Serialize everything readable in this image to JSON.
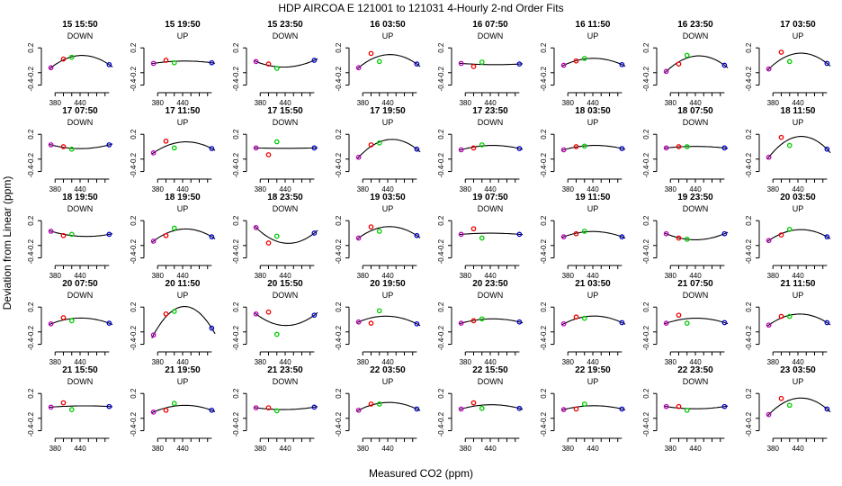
{
  "chart_data": {
    "type": "scatter",
    "title": "HDP    AIRCOA E    121001 to 121031    4-Hourly 2-nd Order Fits",
    "xlabel": "Measured CO2 (ppm)",
    "ylabel": "Deviation from Linear (ppm)",
    "xlim": [
      360,
      520
    ],
    "ylim": [
      -0.45,
      0.45
    ],
    "x_ticks": [
      "380",
      "440"
    ],
    "y_ticks": [
      "-0.4",
      "-0.2",
      "0.2"
    ],
    "grid": false,
    "layout": "5 rows x 8 columns of small multiples",
    "point_x": [
      370,
      400,
      420,
      510
    ],
    "point_colors": [
      "#bb00bb",
      "#ee0000",
      "#00cc00",
      "#0000cc"
    ],
    "panels": [
      {
        "title": "15 15:50",
        "dir": "DOWN",
        "points": [
          -0.12,
          0.02,
          0.05,
          -0.07
        ]
      },
      {
        "title": "15 19:50",
        "dir": "UP",
        "points": [
          -0.05,
          0.0,
          -0.04,
          -0.04
        ]
      },
      {
        "title": "15 23:50",
        "dir": "DOWN",
        "points": [
          -0.02,
          -0.06,
          -0.13,
          0.0
        ]
      },
      {
        "title": "16 03:50",
        "dir": "UP",
        "points": [
          -0.12,
          0.11,
          -0.02,
          -0.06
        ]
      },
      {
        "title": "16 07:50",
        "dir": "DOWN",
        "points": [
          -0.05,
          -0.1,
          -0.03,
          -0.06
        ]
      },
      {
        "title": "16 11:50",
        "dir": "UP",
        "points": [
          -0.08,
          -0.01,
          0.03,
          -0.07
        ]
      },
      {
        "title": "16 23:50",
        "dir": "DOWN",
        "points": [
          -0.18,
          -0.06,
          0.08,
          -0.08
        ]
      },
      {
        "title": "17 03:50",
        "dir": "UP",
        "points": [
          -0.14,
          0.13,
          -0.02,
          -0.05
        ]
      },
      {
        "title": "17 07:50",
        "dir": "DOWN",
        "points": [
          0.03,
          0.0,
          -0.04,
          0.03
        ]
      },
      {
        "title": "17 11:50",
        "dir": "UP",
        "points": [
          -0.1,
          0.09,
          -0.02,
          -0.03
        ]
      },
      {
        "title": "17 15:50",
        "dir": "DOWN",
        "points": [
          -0.02,
          -0.13,
          0.08,
          -0.02
        ]
      },
      {
        "title": "17 19:50",
        "dir": "UP",
        "points": [
          -0.17,
          0.03,
          0.06,
          -0.04
        ]
      },
      {
        "title": "17 23:50",
        "dir": "DOWN",
        "points": [
          -0.05,
          -0.02,
          0.03,
          -0.03
        ]
      },
      {
        "title": "18 03:50",
        "dir": "UP",
        "points": [
          -0.05,
          0.0,
          0.01,
          -0.03
        ]
      },
      {
        "title": "18 07:50",
        "dir": "DOWN",
        "points": [
          -0.02,
          0.0,
          0.0,
          -0.02
        ]
      },
      {
        "title": "18 11:50",
        "dir": "UP",
        "points": [
          -0.17,
          0.15,
          0.02,
          -0.04
        ]
      },
      {
        "title": "18 19:50",
        "dir": "DOWN",
        "points": [
          0.03,
          -0.04,
          -0.02,
          -0.02
        ]
      },
      {
        "title": "18 19:50",
        "dir": "UP",
        "points": [
          -0.13,
          -0.04,
          0.08,
          -0.06
        ]
      },
      {
        "title": "18 23:50",
        "dir": "DOWN",
        "points": [
          0.09,
          -0.16,
          -0.05,
          0.0
        ]
      },
      {
        "title": "19 03:50",
        "dir": "UP",
        "points": [
          -0.08,
          0.1,
          0.03,
          -0.04
        ]
      },
      {
        "title": "19 07:50",
        "dir": "DOWN",
        "points": [
          -0.02,
          0.07,
          -0.08,
          -0.02
        ]
      },
      {
        "title": "19 11:50",
        "dir": "UP",
        "points": [
          -0.06,
          -0.01,
          0.03,
          -0.06
        ]
      },
      {
        "title": "19 23:50",
        "dir": "DOWN",
        "points": [
          -0.01,
          -0.08,
          -0.1,
          -0.01
        ]
      },
      {
        "title": "20 03:50",
        "dir": "UP",
        "points": [
          -0.12,
          -0.03,
          0.06,
          -0.06
        ]
      },
      {
        "title": "20 07:50",
        "dir": "DOWN",
        "points": [
          -0.07,
          0.03,
          -0.02,
          -0.06
        ]
      },
      {
        "title": "20 11:50",
        "dir": "UP",
        "points": [
          -0.25,
          0.09,
          0.13,
          -0.14
        ]
      },
      {
        "title": "20 15:50",
        "dir": "DOWN",
        "points": [
          0.09,
          0.12,
          -0.24,
          0.07
        ]
      },
      {
        "title": "20 19:50",
        "dir": "UP",
        "points": [
          -0.04,
          -0.06,
          0.14,
          -0.07
        ]
      },
      {
        "title": "20 23:50",
        "dir": "DOWN",
        "points": [
          -0.06,
          -0.02,
          0.01,
          -0.04
        ]
      },
      {
        "title": "21 03:50",
        "dir": "UP",
        "points": [
          -0.07,
          0.04,
          0.02,
          -0.05
        ]
      },
      {
        "title": "21 07:50",
        "dir": "DOWN",
        "points": [
          -0.06,
          0.07,
          -0.06,
          -0.05
        ]
      },
      {
        "title": "21 11:50",
        "dir": "UP",
        "points": [
          -0.09,
          0.05,
          0.05,
          -0.05
        ]
      },
      {
        "title": "21 15:50",
        "dir": "DOWN",
        "points": [
          -0.02,
          0.05,
          -0.06,
          -0.01
        ]
      },
      {
        "title": "21 19:50",
        "dir": "UP",
        "points": [
          -0.1,
          -0.07,
          0.04,
          -0.07
        ]
      },
      {
        "title": "21 23:50",
        "dir": "DOWN",
        "points": [
          -0.03,
          -0.03,
          -0.08,
          -0.02
        ]
      },
      {
        "title": "22 03:50",
        "dir": "UP",
        "points": [
          -0.07,
          0.03,
          0.03,
          -0.05
        ]
      },
      {
        "title": "22 15:50",
        "dir": "DOWN",
        "points": [
          -0.05,
          0.05,
          -0.04,
          -0.04
        ]
      },
      {
        "title": "22 19:50",
        "dir": "UP",
        "points": [
          -0.06,
          -0.05,
          0.03,
          -0.05
        ]
      },
      {
        "title": "22 23:50",
        "dir": "DOWN",
        "points": [
          -0.01,
          -0.01,
          -0.07,
          -0.01
        ]
      },
      {
        "title": "23 03:50",
        "dir": "UP",
        "points": [
          -0.14,
          0.12,
          0.01,
          -0.05
        ]
      }
    ]
  }
}
